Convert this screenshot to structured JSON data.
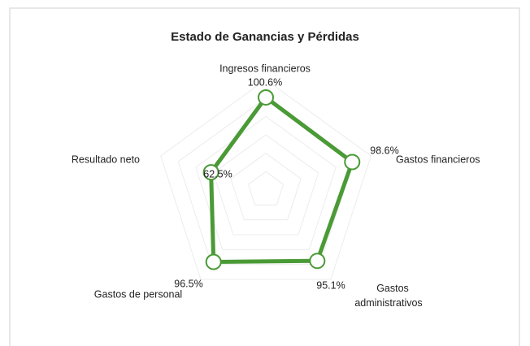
{
  "chart_data": {
    "type": "radar",
    "title": "Estado de Ganancias y Pérdidas",
    "categories": [
      "Ingresos financieros",
      "Gastos financieros",
      "Gastos administrativos",
      "Gastos de personal",
      "Resultado neto"
    ],
    "values": [
      100.6,
      98.6,
      95.1,
      96.5,
      62.5
    ],
    "value_labels": [
      "100.6%",
      "98.6%",
      "95.1%",
      "96.5%",
      "62.5%"
    ],
    "color": "#4a9a36",
    "ylim": [
      0,
      120
    ],
    "yticks": [
      0,
      20,
      40,
      60,
      80,
      100,
      120
    ],
    "grid": true
  }
}
